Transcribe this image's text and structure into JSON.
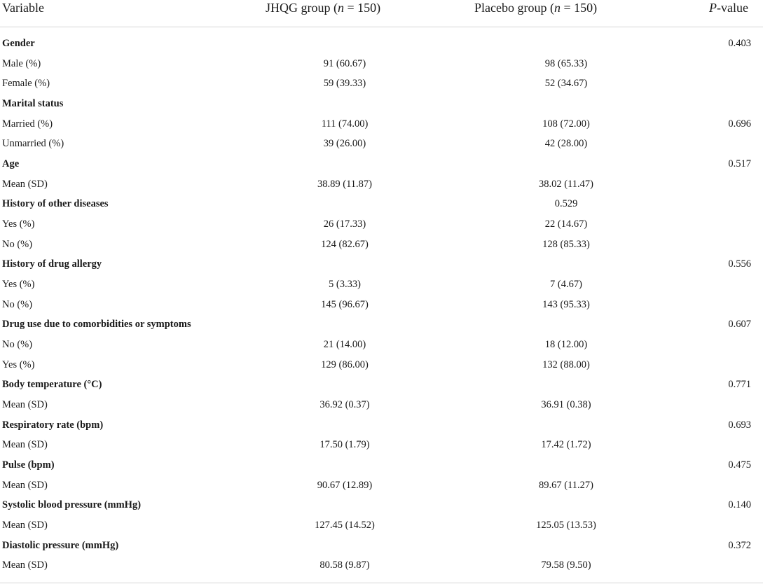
{
  "headers": {
    "variable": "Variable",
    "jhqg_pre": "JHQG group (",
    "jhqg_n": "n",
    "jhqg_post": " = 150)",
    "placebo_pre": "Placebo group (",
    "placebo_n": "n",
    "placebo_post": " = 150)",
    "p_italic": "P",
    "p_rest": "-value"
  },
  "rows": [
    {
      "label": "Gender",
      "section": true,
      "jhqg": "",
      "placebo": "",
      "p": "0.403"
    },
    {
      "label": "Male (%)",
      "section": false,
      "jhqg": "91 (60.67)",
      "placebo": "98 (65.33)",
      "p": ""
    },
    {
      "label": "Female (%)",
      "section": false,
      "jhqg": "59 (39.33)",
      "placebo": "52 (34.67)",
      "p": ""
    },
    {
      "label": "Marital status",
      "section": true,
      "jhqg": "",
      "placebo": "",
      "p": ""
    },
    {
      "label": "Married (%)",
      "section": false,
      "jhqg": "111 (74.00)",
      "placebo": "108 (72.00)",
      "p": "0.696"
    },
    {
      "label": "Unmarried (%)",
      "section": false,
      "jhqg": "39 (26.00)",
      "placebo": "42 (28.00)",
      "p": ""
    },
    {
      "label": "Age",
      "section": true,
      "jhqg": "",
      "placebo": "",
      "p": "0.517"
    },
    {
      "label": "Mean (SD)",
      "section": false,
      "jhqg": "38.89 (11.87)",
      "placebo": "38.02 (11.47)",
      "p": ""
    },
    {
      "label": "History of other diseases",
      "section": true,
      "jhqg": "",
      "placebo": "0.529",
      "p": ""
    },
    {
      "label": "Yes (%)",
      "section": false,
      "jhqg": "26 (17.33)",
      "placebo": "22 (14.67)",
      "p": ""
    },
    {
      "label": "No (%)",
      "section": false,
      "jhqg": "124 (82.67)",
      "placebo": "128 (85.33)",
      "p": ""
    },
    {
      "label": "History of drug allergy",
      "section": true,
      "jhqg": "",
      "placebo": "",
      "p": "0.556"
    },
    {
      "label": "Yes (%)",
      "section": false,
      "jhqg": "5 (3.33)",
      "placebo": "7 (4.67)",
      "p": ""
    },
    {
      "label": "No (%)",
      "section": false,
      "jhqg": "145 (96.67)",
      "placebo": "143 (95.33)",
      "p": ""
    },
    {
      "label": "Drug use due to comorbidities or symptoms",
      "section": true,
      "jhqg": "",
      "placebo": "",
      "p": "0.607"
    },
    {
      "label": "No (%)",
      "section": false,
      "jhqg": "21 (14.00)",
      "placebo": "18 (12.00)",
      "p": ""
    },
    {
      "label": "Yes (%)",
      "section": false,
      "jhqg": "129 (86.00)",
      "placebo": "132 (88.00)",
      "p": ""
    },
    {
      "label": "Body temperature (°C)",
      "section": true,
      "jhqg": "",
      "placebo": "",
      "p": "0.771"
    },
    {
      "label": "Mean (SD)",
      "section": false,
      "jhqg": "36.92 (0.37)",
      "placebo": "36.91 (0.38)",
      "p": ""
    },
    {
      "label": "Respiratory rate (bpm)",
      "section": true,
      "jhqg": "",
      "placebo": "",
      "p": "0.693"
    },
    {
      "label": "Mean (SD)",
      "section": false,
      "jhqg": "17.50 (1.79)",
      "placebo": "17.42 (1.72)",
      "p": ""
    },
    {
      "label": "Pulse (bpm)",
      "section": true,
      "jhqg": "",
      "placebo": "",
      "p": "0.475"
    },
    {
      "label": "Mean (SD)",
      "section": false,
      "jhqg": "90.67 (12.89)",
      "placebo": "89.67 (11.27)",
      "p": ""
    },
    {
      "label": "Systolic blood pressure (mmHg)",
      "section": true,
      "jhqg": "",
      "placebo": "",
      "p": "0.140"
    },
    {
      "label": "Mean (SD)",
      "section": false,
      "jhqg": "127.45 (14.52)",
      "placebo": "125.05 (13.53)",
      "p": ""
    },
    {
      "label": "Diastolic pressure (mmHg)",
      "section": true,
      "jhqg": "",
      "placebo": "",
      "p": "0.372"
    },
    {
      "label": "Mean (SD)",
      "section": false,
      "jhqg": "80.58 (9.87)",
      "placebo": "79.58 (9.50)",
      "p": ""
    }
  ]
}
